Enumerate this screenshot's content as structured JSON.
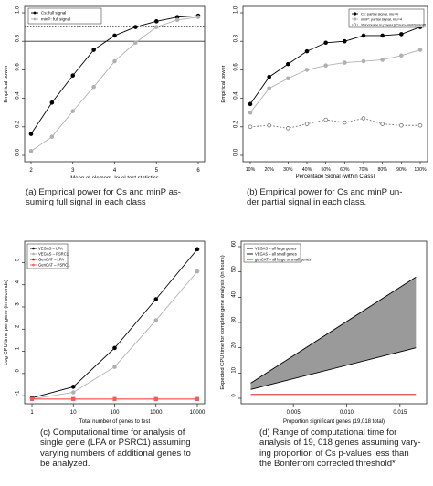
{
  "captions": {
    "a": "(a) Empirical power for Cs and minP as-\nsuming full signal in each class",
    "b": "(b) Empirical power for Cs and minP un-\nder partial signal in each class.",
    "c": "(c) Computational time for analysis of\nsingle gene (LPA or PSRC1) assuming\nvarying numbers of additional genes to\nbe analyzed.",
    "d": "(d) Range of computational time for\nanalysis of 19, 018 genes assuming vary-\ning proportion of Cs p-values less than\nthe Bonferroni corrected threshold*"
  },
  "chart_data": [
    {
      "id": "a",
      "type": "line",
      "xlabel": "Mean of element–level test statistics",
      "ylabel": "Empirical power",
      "xlim": [
        2,
        6
      ],
      "ylim": [
        0,
        1
      ],
      "xticks": [
        "2",
        "3",
        "4",
        "5",
        "6"
      ],
      "yticks": [
        "0.0",
        "0.2",
        "0.4",
        "0.6",
        "0.8",
        "1.0"
      ],
      "legend": [
        "Cs: full signal",
        "minP: full signal"
      ],
      "hlines": [
        0.8,
        0.9
      ],
      "series": [
        {
          "name": "Cs: full signal",
          "color": "#000000",
          "x": [
            2,
            2.5,
            3,
            3.5,
            4,
            4.5,
            5,
            5.5,
            6
          ],
          "y": [
            0.15,
            0.37,
            0.56,
            0.74,
            0.84,
            0.9,
            0.94,
            0.97,
            0.98
          ]
        },
        {
          "name": "minP: full signal",
          "color": "#b0b0b0",
          "x": [
            2,
            2.5,
            3,
            3.5,
            4,
            4.5,
            5,
            5.5,
            6
          ],
          "y": [
            0.03,
            0.13,
            0.31,
            0.48,
            0.66,
            0.79,
            0.9,
            0.95,
            0.97
          ]
        }
      ]
    },
    {
      "id": "b",
      "type": "line",
      "xlabel": "Percentage Signal (within Class)",
      "ylabel": "Empirical power",
      "ylim": [
        0,
        1
      ],
      "categories": [
        "10%",
        "20%",
        "30%",
        "40%",
        "50%",
        "60%",
        "70%",
        "80%",
        "90%",
        "100%"
      ],
      "yticks": [
        "0.0",
        "0.2",
        "0.4",
        "0.6",
        "0.8",
        "1.0"
      ],
      "legend": [
        "Cs: partial signal, mu=4",
        "minP: partial signal, mu=4",
        "% increase in power [(Csum-minP)/minP]"
      ],
      "series": [
        {
          "name": "Cs: partial signal, mu=4",
          "color": "#000000",
          "values": [
            0.36,
            0.55,
            0.64,
            0.73,
            0.79,
            0.8,
            0.84,
            0.84,
            0.85,
            0.9
          ]
        },
        {
          "name": "minP: partial signal, mu=4",
          "color": "#b0b0b0",
          "values": [
            0.3,
            0.47,
            0.54,
            0.6,
            0.63,
            0.65,
            0.66,
            0.67,
            0.7,
            0.74
          ]
        },
        {
          "name": "% increase in power [(Csum-minP)/minP]",
          "color": "#777777",
          "values": [
            0.2,
            0.21,
            0.19,
            0.22,
            0.25,
            0.23,
            0.26,
            0.22,
            0.21,
            0.21
          ]
        }
      ]
    },
    {
      "id": "c",
      "type": "line",
      "xlabel": "Total number of genes to test",
      "ylabel": "Log CPU time per gene (in seconds)",
      "xscale": "log",
      "categories": [
        "1",
        "10",
        "100",
        "1000",
        "10000"
      ],
      "ylim": [
        -1.2,
        5.8
      ],
      "yticks": [
        "-1",
        "0",
        "1",
        "2",
        "3",
        "4",
        "5"
      ],
      "legend": [
        "VEGAS – LPA",
        "VEGAS – PSRC1",
        "GenCAT – LPA",
        "GenCAT – PSRC1"
      ],
      "series": [
        {
          "name": "VEGAS – LPA",
          "color": "#000000",
          "values": [
            -1.1,
            -0.6,
            1.15,
            3.35,
            5.6
          ]
        },
        {
          "name": "VEGAS – PSRC1",
          "color": "#b0b0b0",
          "values": [
            -1.15,
            -0.85,
            0.3,
            2.4,
            4.6
          ]
        },
        {
          "name": "GenCAT – LPA",
          "color": "#cc0000",
          "values": [
            -1.15,
            -1.15,
            -1.15,
            -1.15,
            -1.15
          ]
        },
        {
          "name": "GenCAT – PSRC1",
          "color": "#ff5555",
          "values": [
            -1.15,
            -1.15,
            -1.15,
            -1.15,
            -1.15
          ]
        }
      ]
    },
    {
      "id": "d",
      "type": "area",
      "xlabel": "Proportion significant genes (19,018 total)",
      "ylabel": "Expected CPU time for complete gene analysis (in hours)",
      "xlim": [
        0.0001,
        0.0175
      ],
      "ylim": [
        0,
        60
      ],
      "xticks": [
        "0.005",
        "0.010",
        "0.015"
      ],
      "yticks": [
        "0",
        "10",
        "20",
        "30",
        "40",
        "50",
        "60"
      ],
      "legend": [
        "VEGAS – all large genes",
        "VEGAS – all small genes",
        "genCAT – all large or small genes"
      ],
      "series": [
        {
          "name": "VEGAS – all large genes",
          "color": "#000000",
          "x": [
            0.001,
            0.0165
          ],
          "y": [
            6,
            48
          ]
        },
        {
          "name": "VEGAS – all small genes",
          "color": "#000000",
          "x": [
            0.001,
            0.0165
          ],
          "y": [
            3.5,
            20
          ]
        },
        {
          "name": "genCAT – all large or small genes",
          "color": "#cc0000",
          "x": [
            0.001,
            0.0165
          ],
          "y": [
            1.5,
            1.5
          ]
        }
      ]
    }
  ]
}
